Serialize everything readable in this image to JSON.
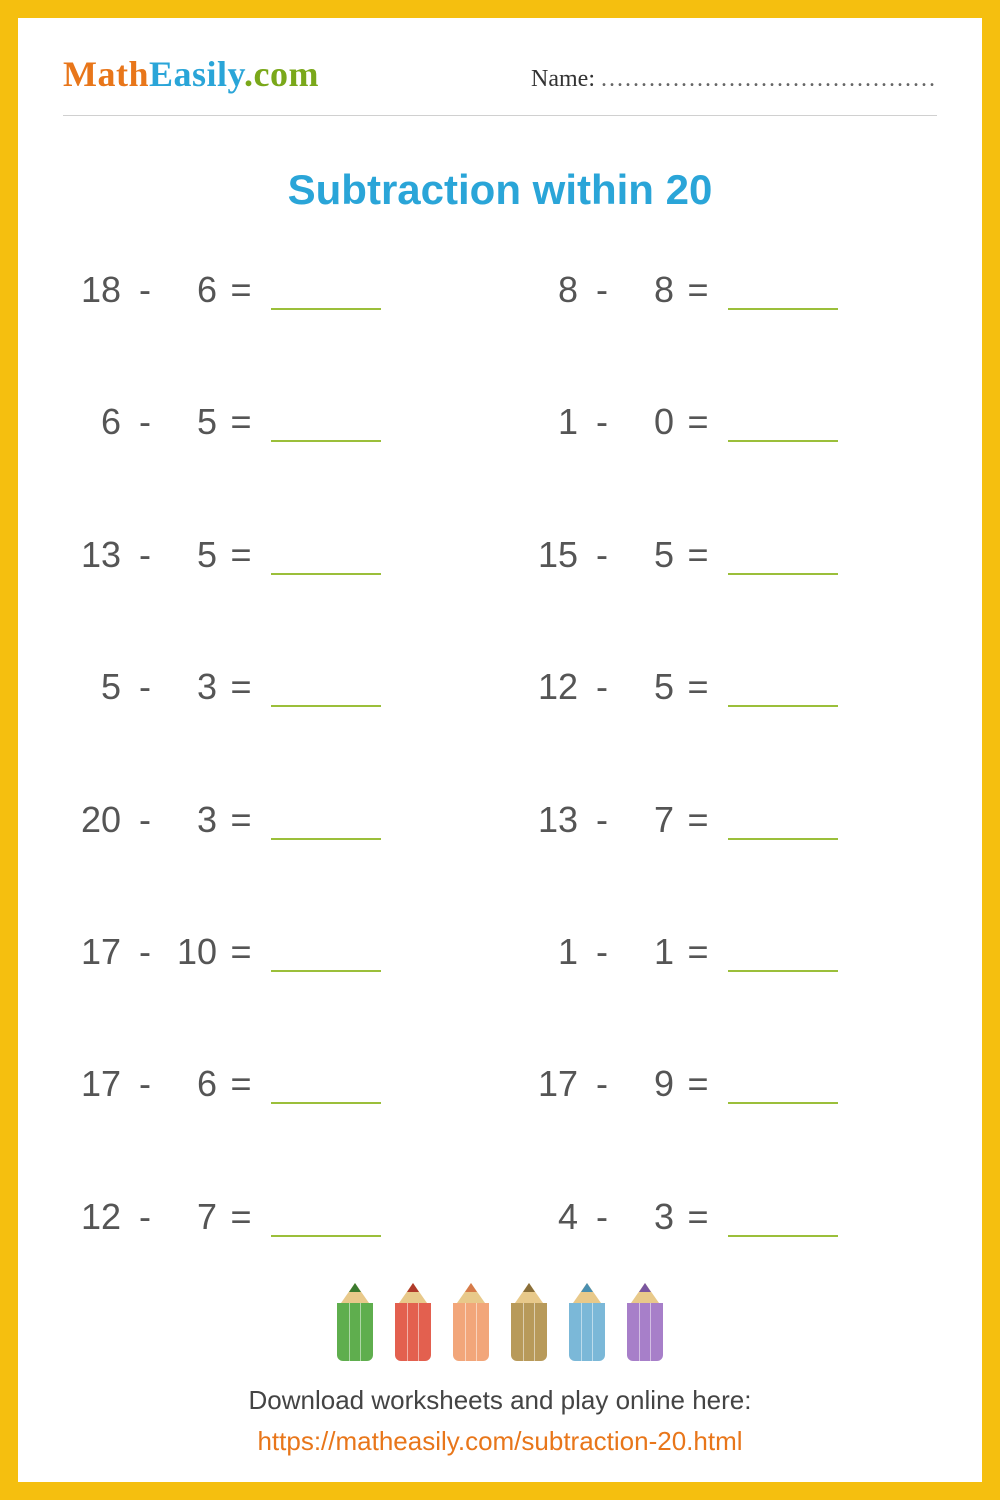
{
  "brand": {
    "part1": "Math",
    "part2": "Easily",
    "part3": ".com"
  },
  "name_label": "Name:",
  "worksheet_title": "Subtraction within 20",
  "colors": {
    "border": "#f5bf0f",
    "title": "#2aa5d8",
    "problem_text": "#555555",
    "blank_underline": "#9bbf3a",
    "link": "#e8761a"
  },
  "typography": {
    "title_fontsize": 42,
    "problem_fontsize": 36,
    "footer_fontsize": 26,
    "logo_fontsize": 36
  },
  "problems_left": [
    {
      "a": "18",
      "b": "6"
    },
    {
      "a": "6",
      "b": "5"
    },
    {
      "a": "13",
      "b": "5"
    },
    {
      "a": "5",
      "b": "3"
    },
    {
      "a": "20",
      "b": "3"
    },
    {
      "a": "17",
      "b": "10"
    },
    {
      "a": "17",
      "b": "6"
    },
    {
      "a": "12",
      "b": "7"
    }
  ],
  "problems_right": [
    {
      "a": "8",
      "b": "8"
    },
    {
      "a": "1",
      "b": "0"
    },
    {
      "a": "15",
      "b": "5"
    },
    {
      "a": "12",
      "b": "5"
    },
    {
      "a": "13",
      "b": "7"
    },
    {
      "a": "1",
      "b": "1"
    },
    {
      "a": "17",
      "b": "9"
    },
    {
      "a": "4",
      "b": "3"
    }
  ],
  "operator": "-",
  "equals": "=",
  "pencil_colors": [
    {
      "body": "#5fae4e",
      "lead": "#3a7a2e"
    },
    {
      "body": "#e3604f",
      "lead": "#b03a2a"
    },
    {
      "body": "#f2a67a",
      "lead": "#d67a4a"
    },
    {
      "body": "#b89a5a",
      "lead": "#8a6f3a"
    },
    {
      "body": "#7bb8d8",
      "lead": "#4a8fb0"
    },
    {
      "body": "#a77fc9",
      "lead": "#7a56a0"
    }
  ],
  "footer_text": "Download worksheets and play online here:",
  "footer_link": "https://matheasily.com/subtraction-20.html"
}
